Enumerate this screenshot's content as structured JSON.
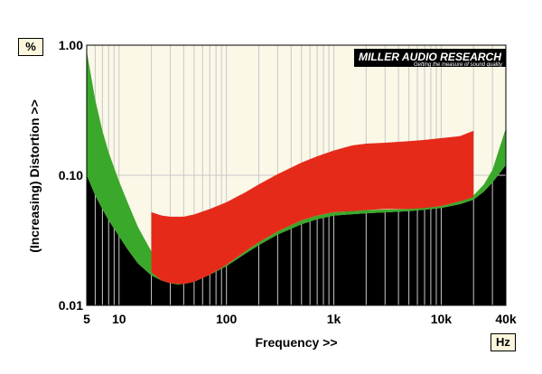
{
  "chart_data": {
    "type": "area",
    "xlabel": "Frequency >>",
    "ylabel": "(Increasing) Distortion >>",
    "x_unit": "Hz",
    "y_unit": "%",
    "x_scale": "log",
    "y_scale": "log",
    "xlim": [
      5,
      40000
    ],
    "ylim": [
      0.01,
      1.0
    ],
    "x_tick_labels": [
      {
        "value": 5,
        "label": "5"
      },
      {
        "value": 10,
        "label": "10"
      },
      {
        "value": 100,
        "label": "100"
      },
      {
        "value": 1000,
        "label": "1k"
      },
      {
        "value": 10000,
        "label": "10k"
      },
      {
        "value": 40000,
        "label": "40k"
      }
    ],
    "y_tick_labels": [
      {
        "value": 1.0,
        "label": "1.00"
      },
      {
        "value": 0.1,
        "label": "0.10"
      },
      {
        "value": 0.01,
        "label": "0.01"
      }
    ],
    "grid": true,
    "logo": {
      "main": "MILLER AUDIO RESEARCH",
      "tagline": "Getting the measure of sound quality"
    },
    "colors": {
      "background": "#fbf8e8",
      "floor": "#000000",
      "green_band": "#3aa82a",
      "red_band": "#e62a1a",
      "grid": "#c8c8c8"
    },
    "series": [
      {
        "x": [
          5,
          6,
          7,
          8,
          10,
          12,
          15,
          20,
          25,
          30,
          35,
          40,
          50,
          70,
          100,
          150,
          200,
          300,
          500,
          700,
          1000,
          2000,
          5000,
          10000,
          15000,
          20000,
          25000,
          30000,
          40000
        ],
        "lower": [
          0.1,
          0.07,
          0.055,
          0.045,
          0.034,
          0.027,
          0.021,
          0.017,
          0.0155,
          0.0148,
          0.0145,
          0.0146,
          0.0152,
          0.0172,
          0.02,
          0.025,
          0.029,
          0.035,
          0.042,
          0.046,
          0.049,
          0.051,
          0.053,
          0.056,
          0.06,
          0.065,
          0.075,
          0.088,
          0.12
        ],
        "upper": [
          0.9,
          0.38,
          0.22,
          0.15,
          0.09,
          0.062,
          0.04,
          0.026,
          0.02,
          0.0175,
          0.016,
          0.0156,
          0.016,
          0.0178,
          0.0205,
          0.026,
          0.0305,
          0.037,
          0.045,
          0.049,
          0.052,
          0.054,
          0.055,
          0.058,
          0.063,
          0.07,
          0.085,
          0.11,
          0.23
        ]
      },
      {
        "x": [
          20,
          25,
          30,
          40,
          50,
          70,
          100,
          150,
          200,
          300,
          500,
          700,
          1000,
          1500,
          2000,
          3000,
          5000,
          7000,
          10000,
          15000,
          20000
        ],
        "lower": [
          0.018,
          0.0155,
          0.0148,
          0.0146,
          0.0152,
          0.0172,
          0.0205,
          0.026,
          0.0305,
          0.037,
          0.045,
          0.049,
          0.052,
          0.053,
          0.054,
          0.055,
          0.055,
          0.056,
          0.058,
          0.063,
          0.068
        ],
        "upper": [
          0.052,
          0.049,
          0.048,
          0.048,
          0.05,
          0.055,
          0.062,
          0.074,
          0.085,
          0.102,
          0.125,
          0.14,
          0.155,
          0.17,
          0.175,
          0.178,
          0.183,
          0.187,
          0.193,
          0.2,
          0.22
        ]
      }
    ]
  }
}
